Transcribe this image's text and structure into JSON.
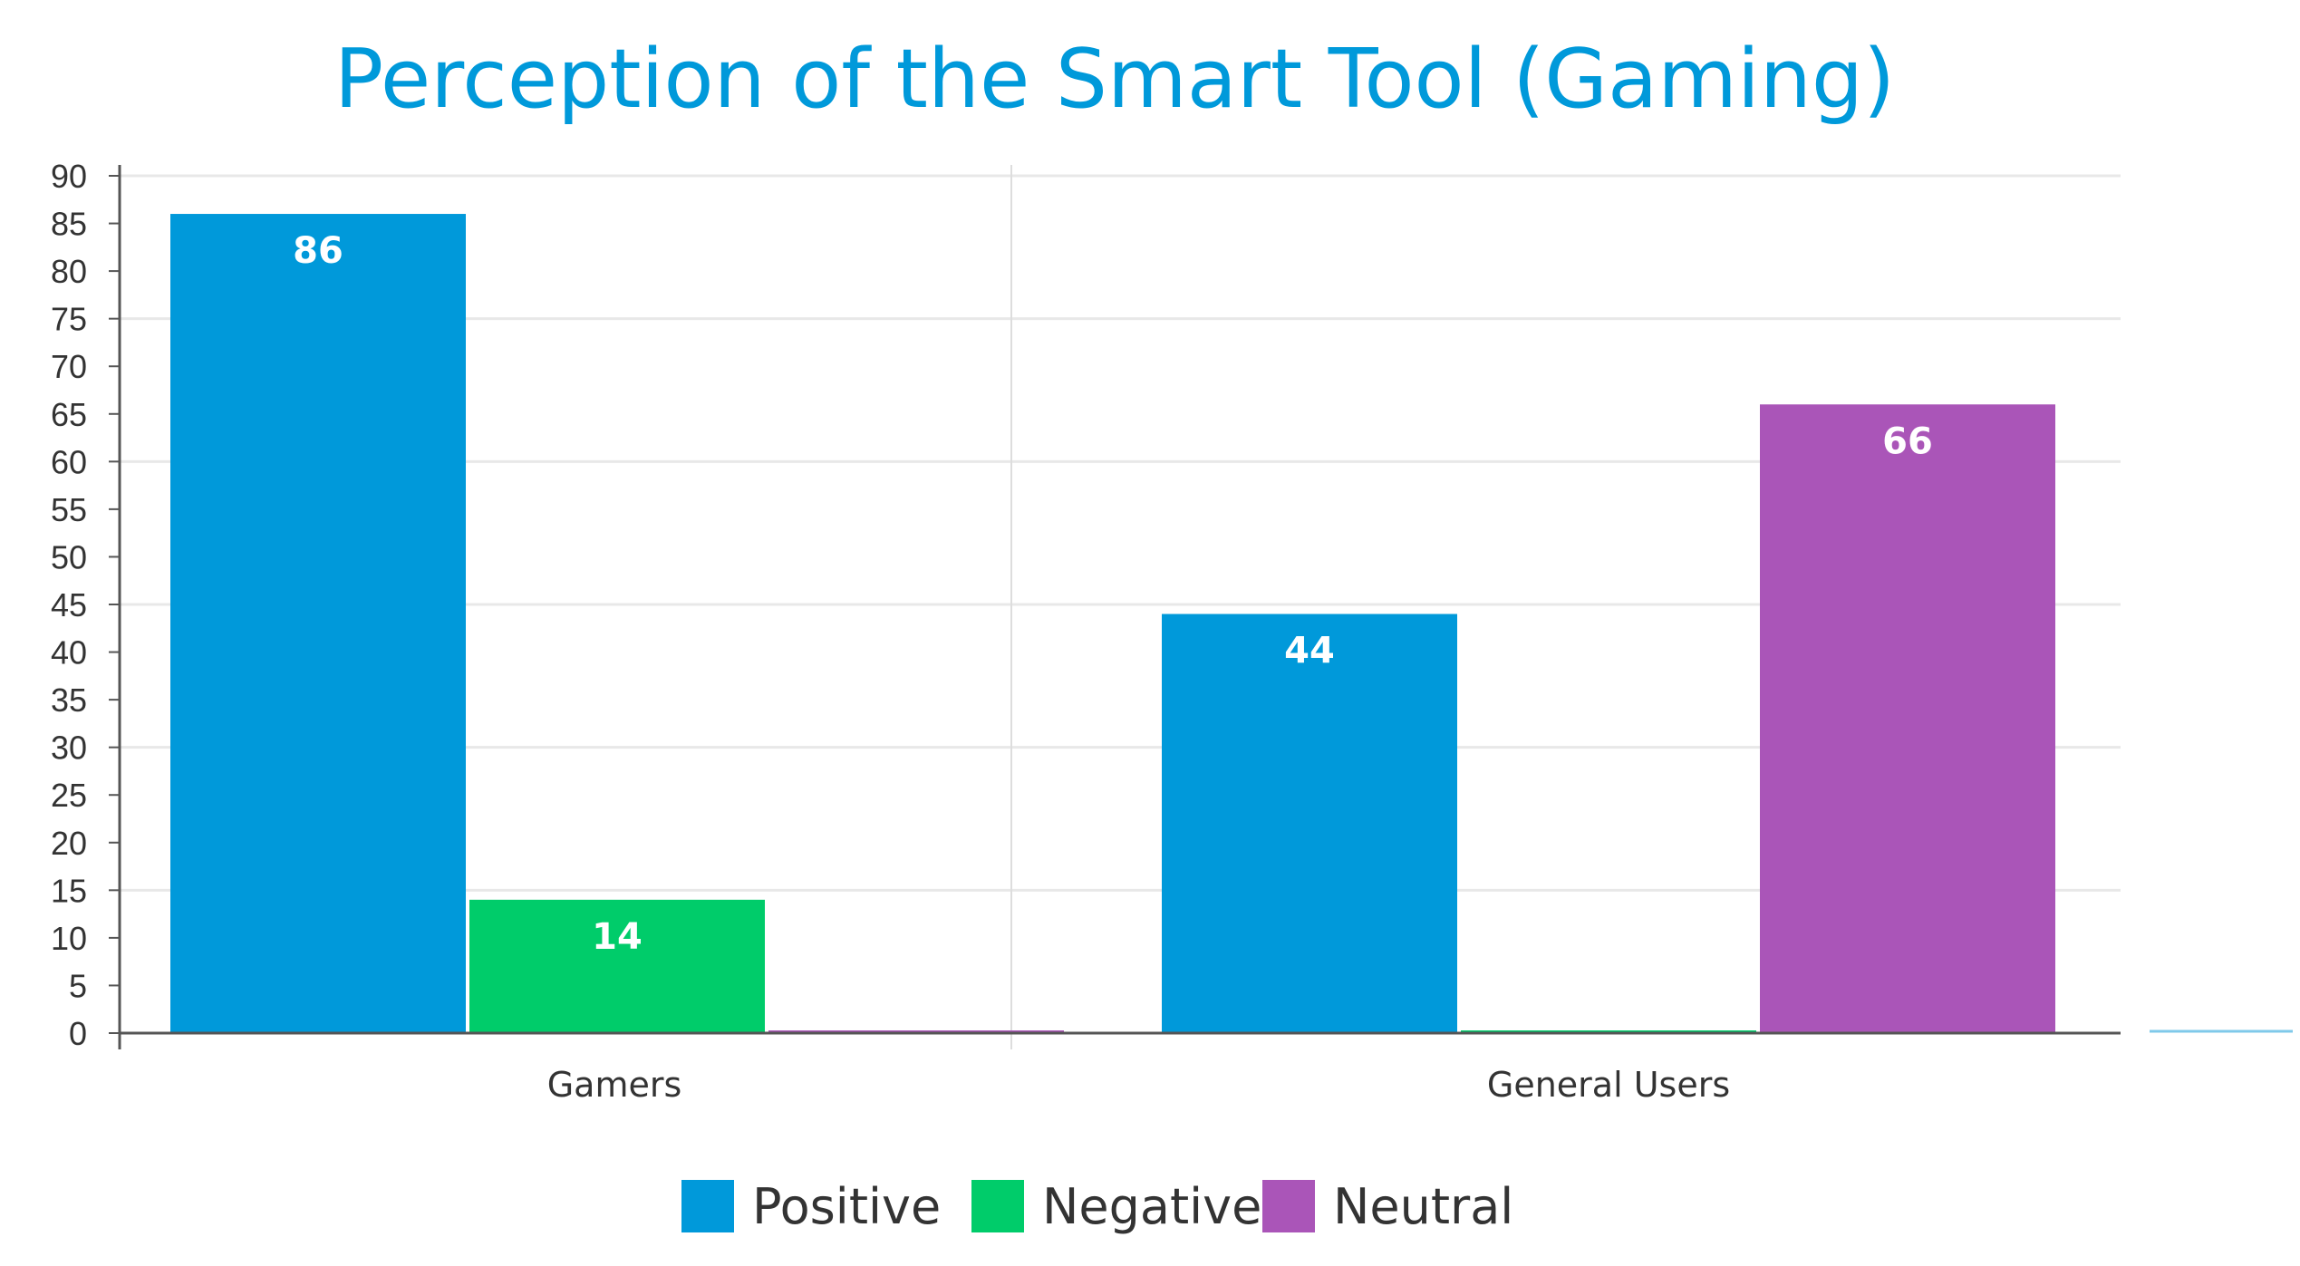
{
  "chart_data": {
    "type": "bar",
    "title": "Perception of the Smart Tool (Gaming)",
    "xlabel": "",
    "ylabel": "",
    "categories": [
      "Gamers",
      "General Users"
    ],
    "series": [
      {
        "name": "Positive",
        "values": [
          86,
          44
        ],
        "color": "#0099da"
      },
      {
        "name": "Negative",
        "values": [
          14,
          0
        ],
        "color": "#00cc6a"
      },
      {
        "name": "Neutral",
        "values": [
          0,
          66
        ],
        "color": "#aa55b8"
      }
    ],
    "ylim": [
      0,
      90
    ],
    "ytick_step": 5,
    "grid": true,
    "legend_position": "bottom",
    "colors": {
      "title": "#0099da",
      "grid": "#e8e8e8",
      "axis": "#555555",
      "text": "#333333"
    }
  }
}
